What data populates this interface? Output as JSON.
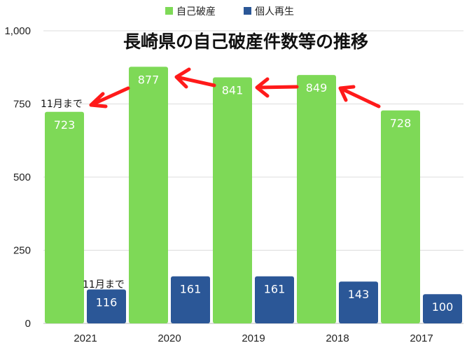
{
  "chart_data": {
    "type": "bar",
    "title": "長崎県の自己破産件数等の推移",
    "categories": [
      "2021",
      "2020",
      "2019",
      "2018",
      "2017"
    ],
    "series": [
      {
        "name": "自己破産",
        "values": [
          723,
          877,
          841,
          849,
          728
        ],
        "color": "#7ed957"
      },
      {
        "name": "個人再生",
        "values": [
          116,
          161,
          161,
          143,
          100
        ],
        "color": "#2b5797"
      }
    ],
    "ylim": [
      0,
      1000
    ],
    "yticks": [
      "0",
      "250",
      "500",
      "750",
      "1,000"
    ],
    "grid": true,
    "legend": "top-center",
    "annotations": {
      "bankruptcy_2021": "11月まで",
      "rehab_2021": "11月まで"
    },
    "arrow_color": "#ff1a1a"
  }
}
